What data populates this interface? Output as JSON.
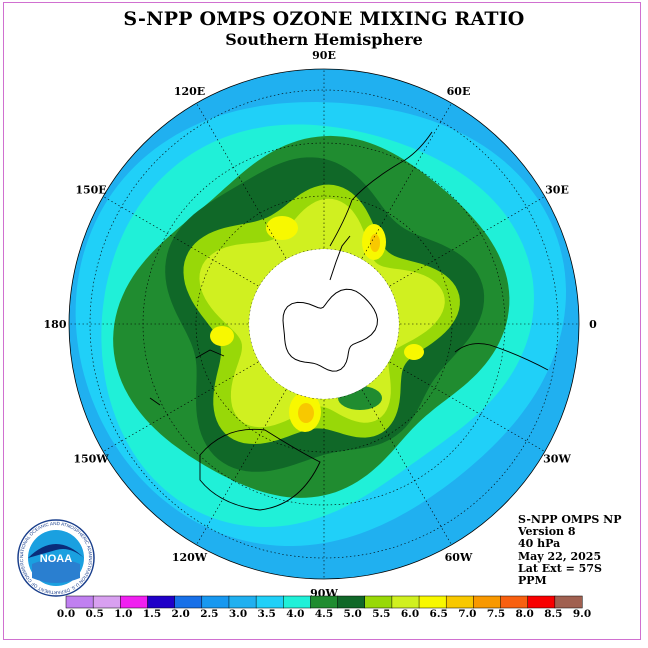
{
  "title": "S-NPP OMPS OZONE MIXING RATIO",
  "subtitle": "Southern Hemisphere",
  "info": {
    "instrument": "S-NPP OMPS NP",
    "version": "Version 8",
    "level": "40 hPa",
    "date": "May 22, 2025",
    "lat_ext": "Lat Ext = 57S",
    "units": "PPM"
  },
  "logo": {
    "text": "NOAA",
    "ring_text": "NATIONAL OCEANIC AND ATMOSPHERIC ADMINISTRATION U.S. DEPARTMENT OF COMMERCE"
  },
  "longitude_labels": [
    "90W",
    "60W",
    "30W",
    "0",
    "30E",
    "60E",
    "90E",
    "120E",
    "150E",
    "180",
    "150W",
    "120W"
  ],
  "colorbar": {
    "labels": [
      "0.0",
      "0.5",
      "1.0",
      "1.5",
      "2.0",
      "2.5",
      "3.0",
      "3.5",
      "4.0",
      "4.5",
      "5.0",
      "5.5",
      "6.0",
      "6.5",
      "7.0",
      "7.5",
      "8.0",
      "8.5",
      "9.0"
    ],
    "colors": [
      "#c080f0",
      "#d8a0f0",
      "#f020f0",
      "#2000c8",
      "#1870e8",
      "#1898f0",
      "#20b0f0",
      "#20d0f8",
      "#20f0d8",
      "#208c30",
      "#106828",
      "#98d808",
      "#d0f020",
      "#f8f800",
      "#f8c800",
      "#f89800",
      "#f86010",
      "#f80000",
      "#a06050"
    ]
  },
  "map": {
    "levels": [
      3.5,
      4.0,
      4.5,
      5.0,
      5.5,
      6.0,
      6.5,
      7.0
    ],
    "land_outline_color": "#000000",
    "pole_hole_color": "#ffffff"
  }
}
